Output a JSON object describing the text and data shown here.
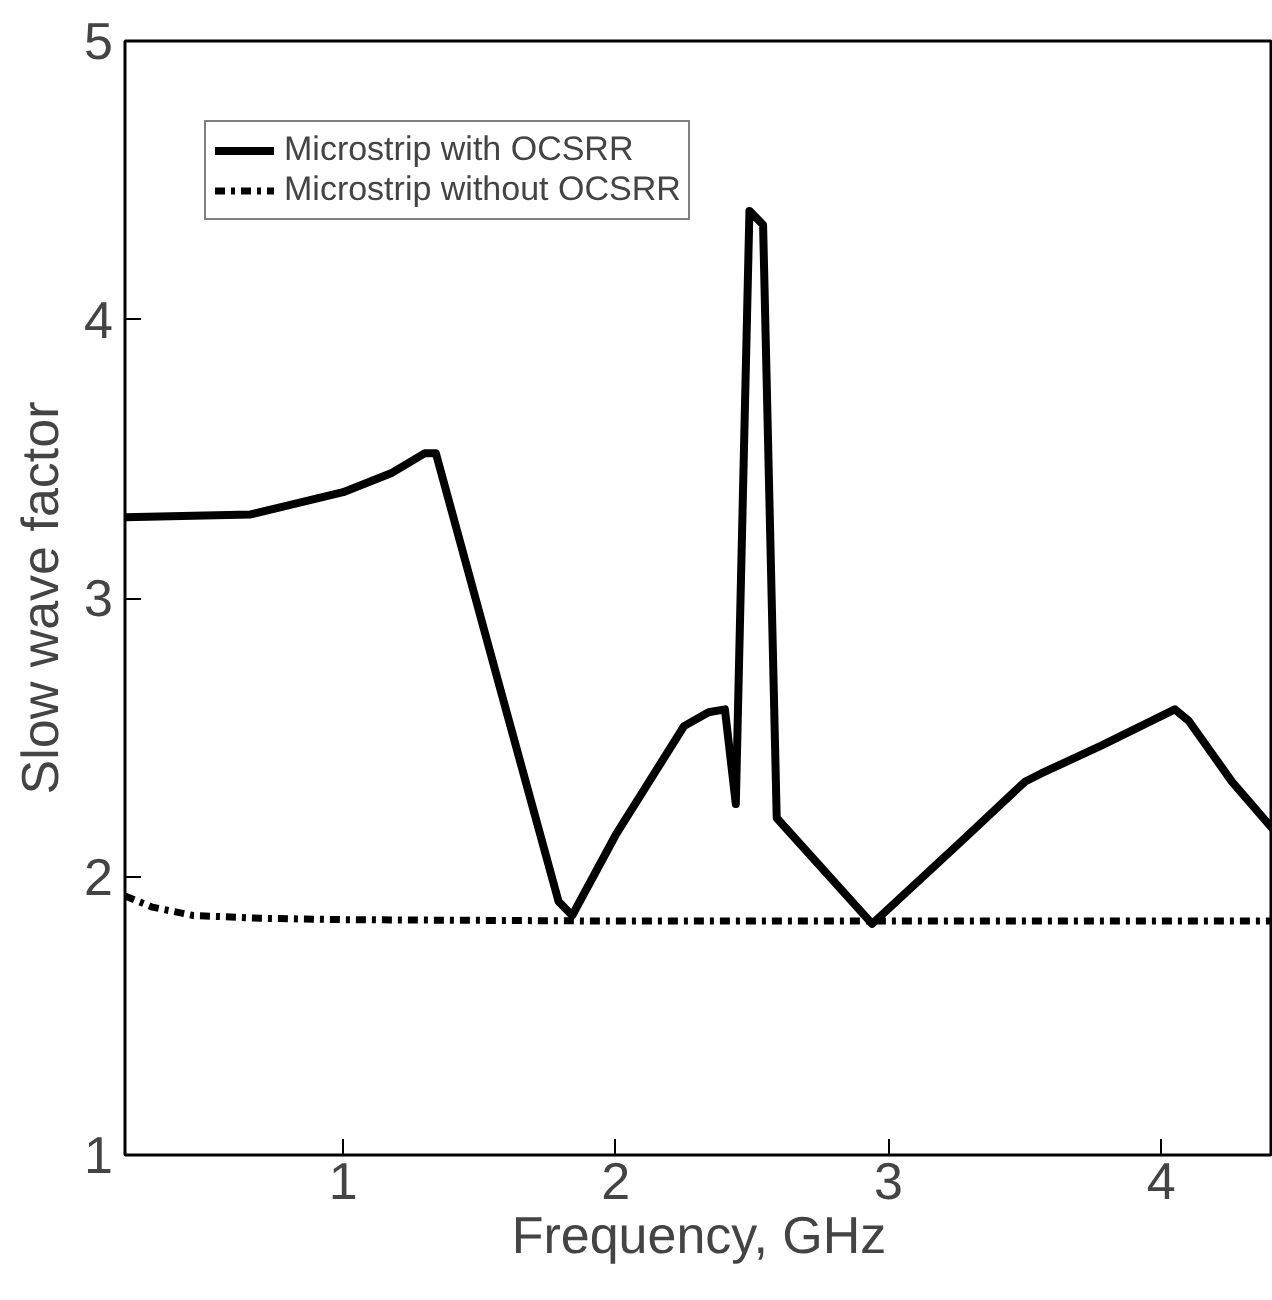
{
  "chart_data": {
    "type": "line",
    "xlabel": "Frequency, GHz",
    "ylabel": "Slow wave factor",
    "xlim": [
      0.2,
      4.41
    ],
    "ylim": [
      1,
      5
    ],
    "xticks": [
      1,
      2,
      3,
      4
    ],
    "yticks": [
      1,
      2,
      3,
      4,
      5
    ],
    "grid": false,
    "legend": "top left",
    "marker": "none",
    "series": [
      {
        "name": "Microstrip with OCSRR",
        "color": "#000000",
        "line_style": "solid",
        "x": [
          0.2,
          0.66,
          1.0,
          1.18,
          1.3,
          1.34,
          1.58,
          1.79,
          1.84,
          2.0,
          2.25,
          2.34,
          2.4,
          2.44,
          2.49,
          2.54,
          2.59,
          2.94,
          3.26,
          3.5,
          3.56,
          3.78,
          4.05,
          4.1,
          4.26,
          4.41
        ],
        "values": [
          3.29,
          3.3,
          3.38,
          3.45,
          3.52,
          3.52,
          2.66,
          1.91,
          1.86,
          2.15,
          2.54,
          2.59,
          2.6,
          2.26,
          4.39,
          4.34,
          2.21,
          1.83,
          2.12,
          2.34,
          2.37,
          2.47,
          2.6,
          2.56,
          2.34,
          2.17
        ]
      },
      {
        "name": "Microstrip without OCSRR",
        "color": "#000000",
        "line_style": "dotted",
        "x": [
          0.2,
          0.3,
          0.45,
          0.7,
          1.0,
          2.0,
          3.0,
          4.41
        ],
        "values": [
          1.93,
          1.89,
          1.86,
          1.85,
          1.845,
          1.84,
          1.84,
          1.84
        ]
      }
    ]
  }
}
